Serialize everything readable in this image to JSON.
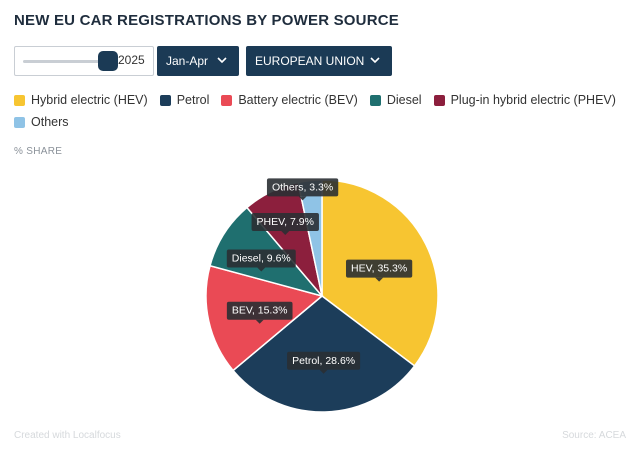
{
  "header": {
    "title": "NEW EU CAR REGISTRATIONS BY POWER SOURCE"
  },
  "controls": {
    "year": "2025",
    "year_slider_fraction": 0.96,
    "period": "Jan-Apr",
    "region": "EUROPEAN UNION"
  },
  "subtitle": "% SHARE",
  "chart_data": {
    "type": "pie",
    "title": "NEW EU CAR REGISTRATIONS BY POWER SOURCE",
    "unit": "% SHARE",
    "legend_position": "top",
    "slices": [
      {
        "name": "Hybrid electric (HEV)",
        "label": "HEV, 35.3%",
        "value": 35.3,
        "color": "#f7c531"
      },
      {
        "name": "Petrol",
        "label": "Petrol, 28.6%",
        "value": 28.6,
        "color": "#1c3d5a"
      },
      {
        "name": "Battery electric (BEV)",
        "label": "BEV, 15.3%",
        "value": 15.3,
        "color": "#ea4a55"
      },
      {
        "name": "Diesel",
        "label": "Diesel, 9.6%",
        "value": 9.6,
        "color": "#1f6f6f"
      },
      {
        "name": "Plug-in hybrid electric (PHEV)",
        "label": "PHEV, 7.9%",
        "value": 7.9,
        "color": "#8c1f3d"
      },
      {
        "name": "Others",
        "label": "Others, 3.3%",
        "value": 3.3,
        "color": "#8fc3e6"
      }
    ]
  },
  "footer": {
    "credit": "Created with Localfocus",
    "source": "Source: ACEA"
  }
}
